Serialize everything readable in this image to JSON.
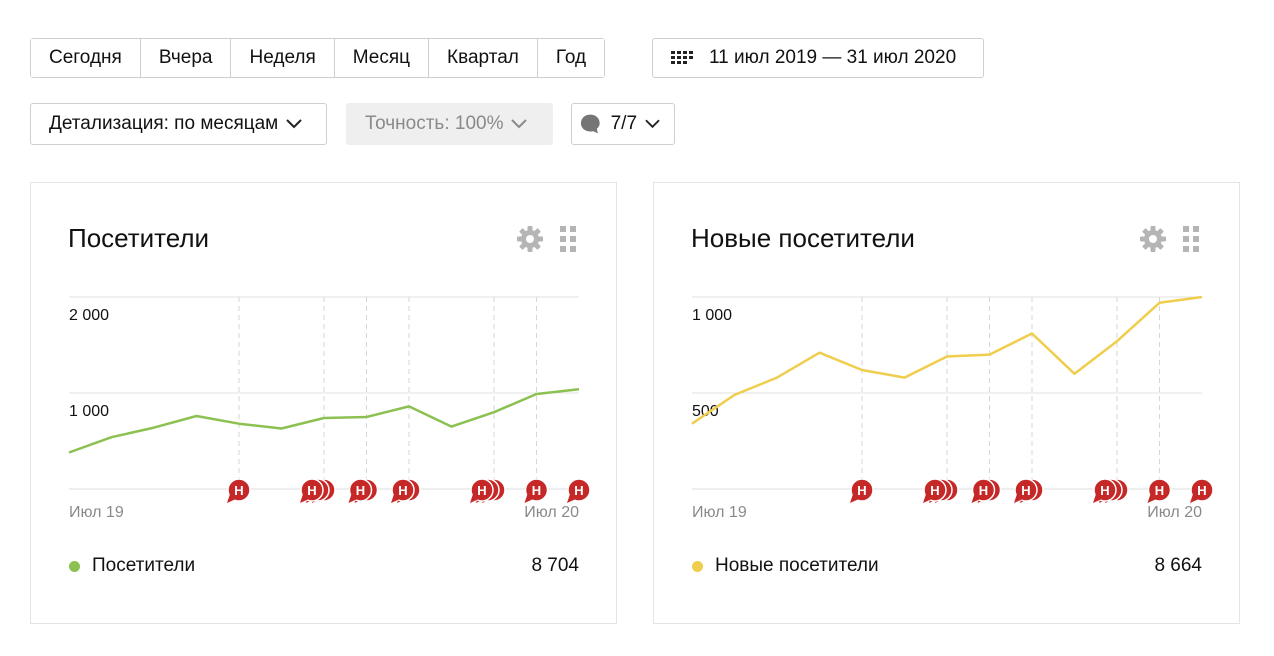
{
  "toolbar": {
    "periods": [
      "Сегодня",
      "Вчера",
      "Неделя",
      "Месяц",
      "Квартал",
      "Год"
    ],
    "date_range": "11 июл 2019 — 31 июл 2020",
    "detail": "Детализация: по месяцам",
    "accuracy": "Точность: 100%",
    "annotations_count": "7/7"
  },
  "annotation_marker_letter": "Н",
  "colors": {
    "visitors_line": "#8cc152",
    "new_visitors_line": "#f0cd4c",
    "marker": "#c62828"
  },
  "chart_data": [
    {
      "type": "line",
      "title": "Посетители",
      "x_labels": [
        "Июл 19",
        "Июл 20"
      ],
      "yticks": [
        1000,
        2000
      ],
      "ytick_labels": [
        "1 000",
        "2 000"
      ],
      "ylim": [
        0,
        2000
      ],
      "grid": true,
      "series": [
        {
          "name": "Посетители",
          "values": [
            380,
            540,
            640,
            760,
            680,
            630,
            740,
            750,
            860,
            650,
            800,
            990,
            1040
          ]
        }
      ],
      "total": "8 704",
      "annotation_groups": [
        {
          "index": 4,
          "count": 1
        },
        {
          "index": 6,
          "count": 3
        },
        {
          "index": 7,
          "count": 2
        },
        {
          "index": 8,
          "count": 2
        },
        {
          "index": 10,
          "count": 3
        },
        {
          "index": 11,
          "count": 1
        },
        {
          "index": 12,
          "count": 1
        }
      ]
    },
    {
      "type": "line",
      "title": "Новые посетители",
      "x_labels": [
        "Июл 19",
        "Июл 20"
      ],
      "yticks": [
        500,
        1000
      ],
      "ytick_labels": [
        "500",
        "1 000"
      ],
      "ylim": [
        0,
        1000
      ],
      "grid": true,
      "series": [
        {
          "name": "Новые посетители",
          "values": [
            340,
            490,
            580,
            710,
            620,
            580,
            690,
            700,
            810,
            600,
            770,
            970,
            1000
          ]
        }
      ],
      "total": "8 664",
      "annotation_groups": [
        {
          "index": 4,
          "count": 1
        },
        {
          "index": 6,
          "count": 3
        },
        {
          "index": 7,
          "count": 2
        },
        {
          "index": 8,
          "count": 2
        },
        {
          "index": 10,
          "count": 3
        },
        {
          "index": 11,
          "count": 1
        },
        {
          "index": 12,
          "count": 1
        }
      ]
    }
  ]
}
